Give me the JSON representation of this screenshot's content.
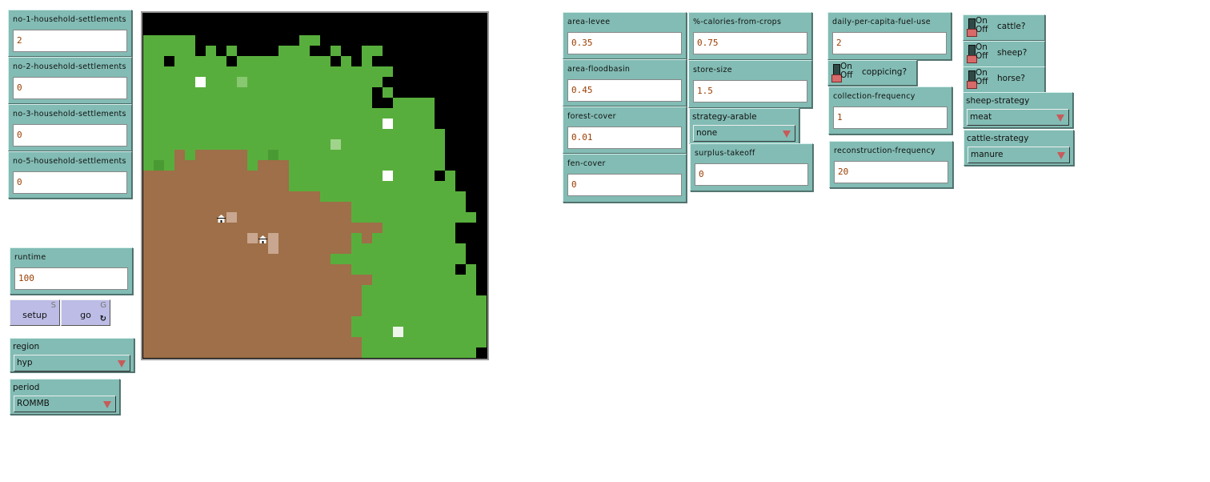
{
  "inputs": {
    "no1": {
      "label": "no-1-household-settlements",
      "value": "2"
    },
    "no2": {
      "label": "no-2-household-settlements",
      "value": "0"
    },
    "no3": {
      "label": "no-3-household-settlements",
      "value": "0"
    },
    "no5": {
      "label": "no-5-household-settlements",
      "value": "0"
    },
    "runtime": {
      "label": "runtime",
      "value": "100"
    },
    "area_levee": {
      "label": "area-levee",
      "value": "0.35"
    },
    "area_floodbasin": {
      "label": "area-floodbasin",
      "value": "0.45"
    },
    "forest_cover": {
      "label": "forest-cover",
      "value": "0.01"
    },
    "fen_cover": {
      "label": "fen-cover",
      "value": "0"
    },
    "calories": {
      "label": "%-calories-from-crops",
      "value": "0.75"
    },
    "store_size": {
      "label": "store-size",
      "value": "1.5"
    },
    "surplus": {
      "label": "surplus-takeoff",
      "value": "0"
    },
    "fuel": {
      "label": "daily-per-capita-fuel-use",
      "value": "2"
    },
    "collection": {
      "label": "collection-frequency",
      "value": "1"
    },
    "reconstruction": {
      "label": "reconstruction-frequency",
      "value": "20"
    }
  },
  "buttons": {
    "setup": {
      "label": "setup",
      "key": "S"
    },
    "go": {
      "label": "go",
      "key": "G",
      "forever_icon": "↻"
    }
  },
  "choosers": {
    "region": {
      "label": "region",
      "value": "hyp"
    },
    "period": {
      "label": "period",
      "value": "ROMMB"
    },
    "strategy_arable": {
      "label": "strategy-arable",
      "value": "none"
    },
    "sheep_strategy": {
      "label": "sheep-strategy",
      "value": "meat"
    },
    "cattle_strategy": {
      "label": "cattle-strategy",
      "value": "manure"
    }
  },
  "switches": {
    "on_label": "On",
    "off_label": "Off",
    "coppicing": {
      "label": "coppicing?",
      "on": false
    },
    "cattle": {
      "label": "cattle?",
      "on": false
    },
    "sheep": {
      "label": "sheep?",
      "on": false
    },
    "horse": {
      "label": "horse?",
      "on": false
    }
  },
  "world": {
    "palette": {
      "K": "#000000",
      "G": "#58ae3c",
      "D": "#4a9a34",
      "B": "#9e6f48",
      "L": "#c9a68f",
      "W": "#ffffff",
      "l": "#88c870",
      "m": "#a0d48c",
      "w": "#eef5ea",
      "H": "#9e6f48"
    },
    "legend_note_house": "H",
    "rows": [
      "KKKKKKKKKKKKKKKKKKKKKKKKKKKKKKKKK",
      "KKKKKKKKKKKKKKKKKKKKKKKKKKKKKKKKK",
      "GGGGGKKKKKKKKKKGGKKKKKKKKKKKKKKKK",
      "GGGGGKGKGKKKKGGGKKGKKGGKKKKKKKKKK",
      "GGKGGGGGKGGGGGGGGGKGKGKKKKKKKKKKK",
      "GGGGGGGGGGGGGGGGGGGGGGGGKKKKKKKKK",
      "GGGGGWGGGlGGGGGGGGGGGGGKKKKKKKKKK",
      "GGGGGGGGGGGGGGGGGGGGGGKGKKKKKKKKK",
      "GGGGGGGGGGGGGGGGGGGGGGKKGGGGKKKKK",
      "GGGGGGGGGGGGGGGGGGGGGGGGGGGGKKKKK",
      "GGGGGGGGGGGGGGGGGGGGGGGWGGGGKKKKK",
      "GGGGGGGGGGGGGGGGGGGGGGGGGGGGGKKKK",
      "GGGGGGGGGGGGGGGGGGmGGGGGGGGGGKKKK",
      "GGGBGBBBBBGGDGGGGGGGGGGGGGGGGKKKK",
      "GDGBBBBBBBGBBBGGGGGGGGGGGGGGGKKKK",
      "BBBBBBBBBBBBBBGGGGGGGGGWGGGGKGKKK",
      "BBBBBBBBBBBBBBGGGGGGGGGGGGGGGGKKK",
      "BBBBBBBBBBBBBBBBBGGGGGGGGGGGGGGKK",
      "BBBBBBBBBBBBBBBBBBBBGGGGGGGGGGGKK",
      "BBBBBBBHLBBBBBBBBBBBGGGGGGGGGGGGK",
      "BBBBBBBBBBBBBBBBBBBBBBBGGGGGGGKKK",
      "BBBBBBBBBBLHLBBBBBBBGBGGGGGGGGKKK",
      "BBBBBBBBBBBBLBBBBBBBGGGGGGGGGGGKK",
      "BBBBBBBBBBBBBBBBBBGGGGGGGGGGGGGKK",
      "BBBBBBBBBBBBBBBBBBBBGGGGGGGGGGKGK",
      "BBBBBBBBBBBBBBBBBBBBBBGGGGGGGGGGK",
      "BBBBBBBBBBBBBBBBBBBBBGGGGGGGGGGGK",
      "BBBBBBBBBBBBBBBBBBBBBGGGGGGGGGGGG",
      "BBBBBBBBBBBBBBBBBBBBBGGGGGGGGGGGG",
      "BBBBBBBBBBBBBBBBBBBBGGGGGGGGGGGGG",
      "BBBBBBBBBBBBBBBBBBBBGGGGwGGGGGGGG",
      "BBBBBBBBBBBBBBBBBBBBBGGGGGGGGGGGG",
      "BBBBBBBBBBBBBBBBBBBBBGGGGGGGGGGGK"
    ]
  }
}
